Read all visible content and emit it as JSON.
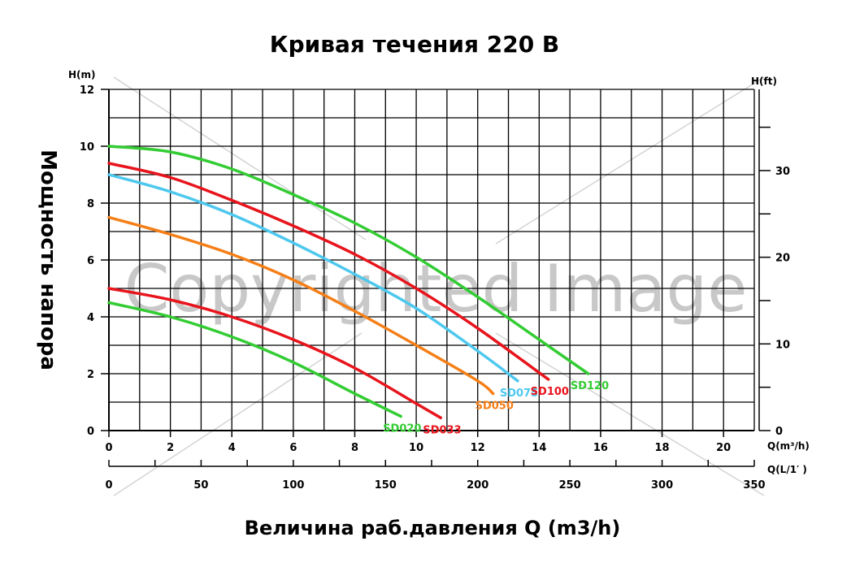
{
  "chart_data": {
    "type": "line",
    "title": "Кривая течения 220 В",
    "xlabel": "Величина раб.давления Q (m3/h)",
    "ylabel": "Мощность напора",
    "y_left_unit": "H(m)",
    "y_right_unit": "H(ft)",
    "x_unit_primary": "Q(m³/h)",
    "x_unit_secondary": "Q(L/1′ )",
    "xlim": [
      0,
      21
    ],
    "ylim": [
      0,
      12
    ],
    "x_ticks": [
      0,
      2,
      4,
      6,
      8,
      10,
      12,
      14,
      16,
      18,
      20
    ],
    "y_ticks": [
      0,
      2,
      4,
      6,
      8,
      10,
      12
    ],
    "y_right_ticks": [
      0,
      10,
      20,
      30
    ],
    "x_secondary_ticks": [
      0,
      50,
      100,
      150,
      200,
      250,
      300,
      350
    ],
    "grid": true,
    "watermark": "Copyrighted Image",
    "series": [
      {
        "name": "SD020",
        "color": "#33cc33",
        "x": [
          0,
          2,
          4,
          6,
          8,
          9.5
        ],
        "y": [
          4.5,
          4.0,
          3.3,
          2.4,
          1.3,
          0.5
        ]
      },
      {
        "name": "SD033",
        "color": "#e8141c",
        "x": [
          0,
          2,
          4,
          6,
          8,
          10,
          10.8
        ],
        "y": [
          5.0,
          4.6,
          4.0,
          3.2,
          2.2,
          0.95,
          0.45
        ]
      },
      {
        "name": "SD050",
        "color": "#f57f17",
        "x": [
          0,
          2,
          4,
          6,
          8,
          10,
          12,
          12.5
        ],
        "y": [
          7.5,
          6.9,
          6.2,
          5.3,
          4.2,
          3.0,
          1.75,
          1.3
        ]
      },
      {
        "name": "SD075",
        "color": "#4dc8ee",
        "x": [
          0,
          2,
          4,
          6,
          8,
          10,
          12,
          13.3
        ],
        "y": [
          9.0,
          8.4,
          7.6,
          6.6,
          5.5,
          4.3,
          2.8,
          1.75
        ]
      },
      {
        "name": "SD100",
        "color": "#e8141c",
        "x": [
          0,
          2,
          4,
          6,
          8,
          10,
          12,
          14.3
        ],
        "y": [
          9.4,
          8.9,
          8.1,
          7.2,
          6.2,
          5.0,
          3.6,
          1.8
        ]
      },
      {
        "name": "SD120",
        "color": "#33cc33",
        "x": [
          0,
          2,
          4,
          6,
          8,
          10,
          12,
          14,
          15.6
        ],
        "y": [
          10.0,
          9.8,
          9.2,
          8.3,
          7.3,
          6.1,
          4.7,
          3.2,
          2.0
        ]
      }
    ]
  }
}
